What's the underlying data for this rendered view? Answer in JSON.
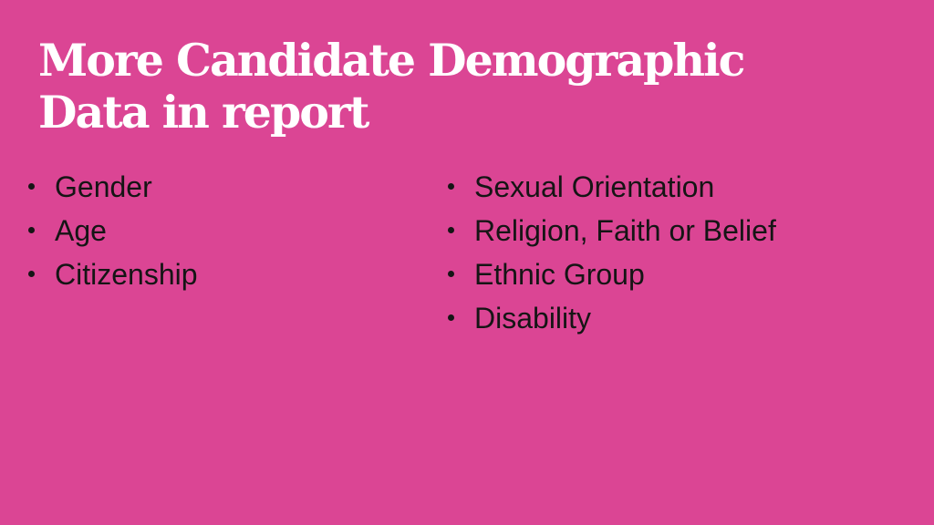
{
  "slide": {
    "title": {
      "line1": "More Candidate Demographic",
      "line2": "Data in report"
    },
    "left_bullets": [
      "Gender",
      "Age",
      "Citizenship"
    ],
    "right_bullets": [
      "Sexual Orientation",
      "Religion, Faith or Belief",
      "Ethnic Group",
      "Disability"
    ]
  },
  "colors": {
    "background": "#db4594",
    "title_text": "#ffffff",
    "body_text": "#151515"
  },
  "icons": {
    "bullet": "bullet-dot-icon"
  }
}
